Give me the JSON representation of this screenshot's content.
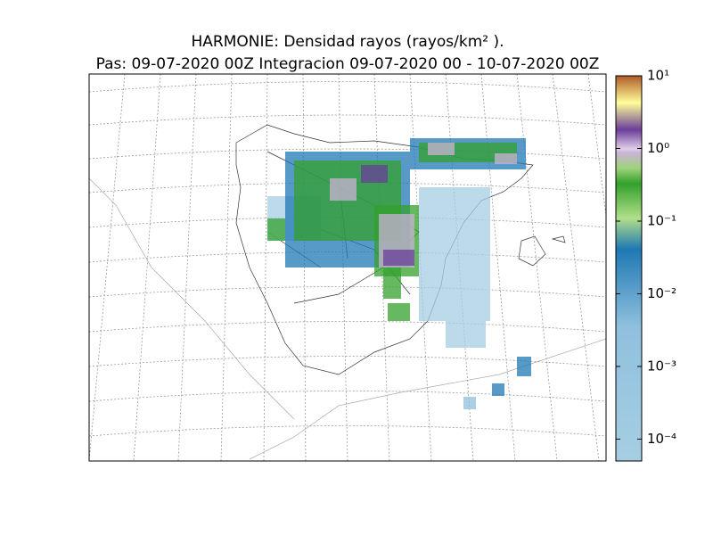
{
  "title": "HARMONIE: Densidad rayos  (rayos/km² ).",
  "subtitle": "Pas: 09-07-2020 00Z Integracion 09-07-2020 00 - 10-07-2020 00Z",
  "colorbar": {
    "scale": "log",
    "range": [
      5e-05,
      10
    ],
    "ticks": [
      {
        "value": 10,
        "label": "10¹"
      },
      {
        "value": 1,
        "label": "10⁰"
      },
      {
        "value": 0.1,
        "label": "10⁻¹"
      },
      {
        "value": 0.01,
        "label": "10⁻²"
      },
      {
        "value": 0.001,
        "label": "10⁻³"
      },
      {
        "value": 0.0001,
        "label": "10⁻⁴"
      }
    ]
  }
}
